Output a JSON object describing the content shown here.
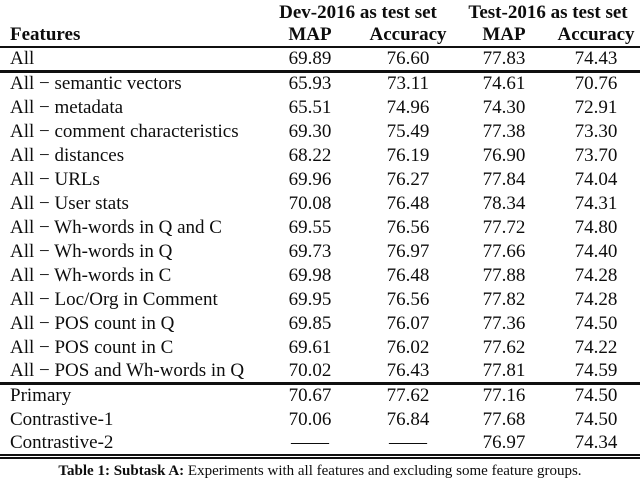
{
  "table": {
    "group_headers": [
      "Dev-2016 as test set",
      "Test-2016 as test set"
    ],
    "columns": [
      "Features",
      "MAP",
      "Accuracy",
      "MAP",
      "Accuracy"
    ],
    "sections": [
      {
        "name": "all-features",
        "rows": [
          {
            "label": "All",
            "values": [
              "69.89",
              "76.60",
              "77.83",
              "74.43"
            ]
          }
        ]
      },
      {
        "name": "feature-ablations",
        "rows": [
          {
            "label": "All − semantic vectors",
            "values": [
              "65.93",
              "73.11",
              "74.61",
              "70.76"
            ]
          },
          {
            "label": "All − metadata",
            "values": [
              "65.51",
              "74.96",
              "74.30",
              "72.91"
            ]
          },
          {
            "label": "All − comment characteristics",
            "values": [
              "69.30",
              "75.49",
              "77.38",
              "73.30"
            ]
          },
          {
            "label": "All − distances",
            "values": [
              "68.22",
              "76.19",
              "76.90",
              "73.70"
            ]
          },
          {
            "label": "All − URLs",
            "values": [
              "69.96",
              "76.27",
              "77.84",
              "74.04"
            ]
          },
          {
            "label": "All − User stats",
            "values": [
              "70.08",
              "76.48",
              "78.34",
              "74.31"
            ]
          },
          {
            "label": "All − Wh-words in Q and C",
            "values": [
              "69.55",
              "76.56",
              "77.72",
              "74.80"
            ]
          },
          {
            "label": "All − Wh-words in Q",
            "values": [
              "69.73",
              "76.97",
              "77.66",
              "74.40"
            ]
          },
          {
            "label": "All − Wh-words in C",
            "values": [
              "69.98",
              "76.48",
              "77.88",
              "74.28"
            ]
          },
          {
            "label": "All − Loc/Org in Comment",
            "values": [
              "69.95",
              "76.56",
              "77.82",
              "74.28"
            ]
          },
          {
            "label": "All − POS count in Q",
            "values": [
              "69.85",
              "76.07",
              "77.36",
              "74.50"
            ]
          },
          {
            "label": "All − POS count in C",
            "values": [
              "69.61",
              "76.02",
              "77.62",
              "74.22"
            ]
          },
          {
            "label": "All − POS and Wh-words in Q",
            "values": [
              "70.02",
              "76.43",
              "77.81",
              "74.59"
            ]
          }
        ]
      },
      {
        "name": "submissions",
        "rows": [
          {
            "label": "Primary",
            "values": [
              "70.67",
              "77.62",
              "77.16",
              "74.50"
            ]
          },
          {
            "label": "Contrastive-1",
            "values": [
              "70.06",
              "76.84",
              "77.68",
              "74.50"
            ]
          },
          {
            "label": "Contrastive-2",
            "values": [
              "——",
              "——",
              "76.97",
              "74.34"
            ]
          }
        ]
      }
    ]
  },
  "caption": {
    "label": "Table 1: Subtask A:",
    "text": " Experiments with all features and excluding some feature groups."
  }
}
